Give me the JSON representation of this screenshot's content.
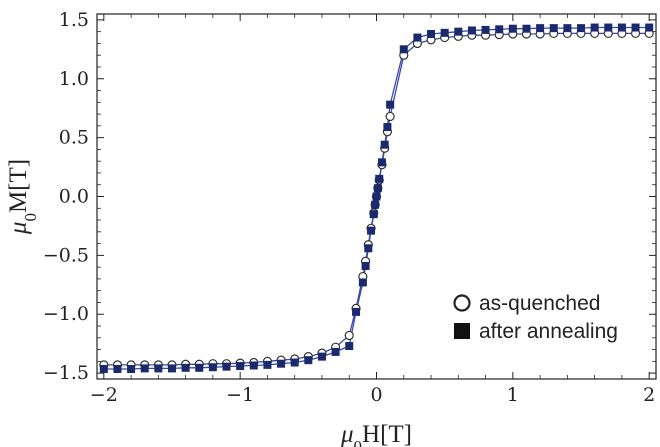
{
  "chart_data": {
    "type": "line",
    "x": [
      -2.0,
      -1.9,
      -1.8,
      -1.7,
      -1.6,
      -1.5,
      -1.4,
      -1.3,
      -1.2,
      -1.1,
      -1.0,
      -0.9,
      -0.8,
      -0.7,
      -0.6,
      -0.5,
      -0.4,
      -0.3,
      -0.2,
      -0.15,
      -0.1,
      -0.08,
      -0.06,
      -0.04,
      -0.02,
      -0.01,
      0.0,
      0.01,
      0.02,
      0.04,
      0.06,
      0.08,
      0.1,
      0.2,
      0.3,
      0.4,
      0.5,
      0.6,
      0.7,
      0.8,
      0.9,
      1.0,
      1.1,
      1.2,
      1.3,
      1.4,
      1.5,
      1.6,
      1.7,
      1.8,
      1.9,
      2.0
    ],
    "series": [
      {
        "name": "as-quenched",
        "marker": "open-circle",
        "values": [
          -1.43,
          -1.43,
          -1.43,
          -1.43,
          -1.43,
          -1.43,
          -1.425,
          -1.425,
          -1.42,
          -1.42,
          -1.415,
          -1.41,
          -1.4,
          -1.39,
          -1.38,
          -1.36,
          -1.33,
          -1.28,
          -1.18,
          -0.95,
          -0.68,
          -0.55,
          -0.41,
          -0.27,
          -0.14,
          -0.07,
          0.0,
          0.07,
          0.14,
          0.27,
          0.41,
          0.55,
          0.68,
          1.2,
          1.3,
          1.33,
          1.35,
          1.36,
          1.37,
          1.37,
          1.375,
          1.38,
          1.38,
          1.38,
          1.385,
          1.385,
          1.385,
          1.385,
          1.385,
          1.385,
          1.385,
          1.385
        ]
      },
      {
        "name": "after annealing",
        "marker": "filled-square",
        "values": [
          -1.465,
          -1.465,
          -1.465,
          -1.46,
          -1.46,
          -1.46,
          -1.455,
          -1.455,
          -1.45,
          -1.445,
          -1.44,
          -1.435,
          -1.43,
          -1.42,
          -1.41,
          -1.39,
          -1.36,
          -1.32,
          -1.27,
          -0.98,
          -0.73,
          -0.59,
          -0.44,
          -0.29,
          -0.15,
          -0.07,
          0.0,
          0.07,
          0.15,
          0.29,
          0.44,
          0.59,
          0.78,
          1.25,
          1.35,
          1.38,
          1.39,
          1.4,
          1.41,
          1.415,
          1.42,
          1.425,
          1.425,
          1.43,
          1.43,
          1.43,
          1.43,
          1.435,
          1.435,
          1.435,
          1.435,
          1.435
        ]
      }
    ],
    "xlabel_prefix": "μ",
    "xlabel_subscript": "0",
    "xlabel_suffix": "H[T]",
    "ylabel_prefix": "μ",
    "ylabel_subscript": "0",
    "ylabel_suffix": "M[T]",
    "xlim": [
      -2.05,
      2.05
    ],
    "ylim": [
      -1.55,
      1.55
    ],
    "xticks": [
      -2,
      -1,
      0,
      1,
      2
    ],
    "xtick_labels": [
      "−2",
      "−1",
      "0",
      "1",
      "2"
    ],
    "yticks": [
      -1.5,
      -1.0,
      -0.5,
      0.0,
      0.5,
      1.0,
      1.5
    ],
    "ytick_labels": [
      "−1.5",
      "−1.0",
      "−0.5",
      "0.0",
      "0.5",
      "1.0",
      "1.5"
    ],
    "grid": false,
    "legend_position": "bottom-right",
    "colors": {
      "line": "#3b4aa8",
      "marker": "#1a2a6c",
      "axis": "#222222"
    }
  }
}
